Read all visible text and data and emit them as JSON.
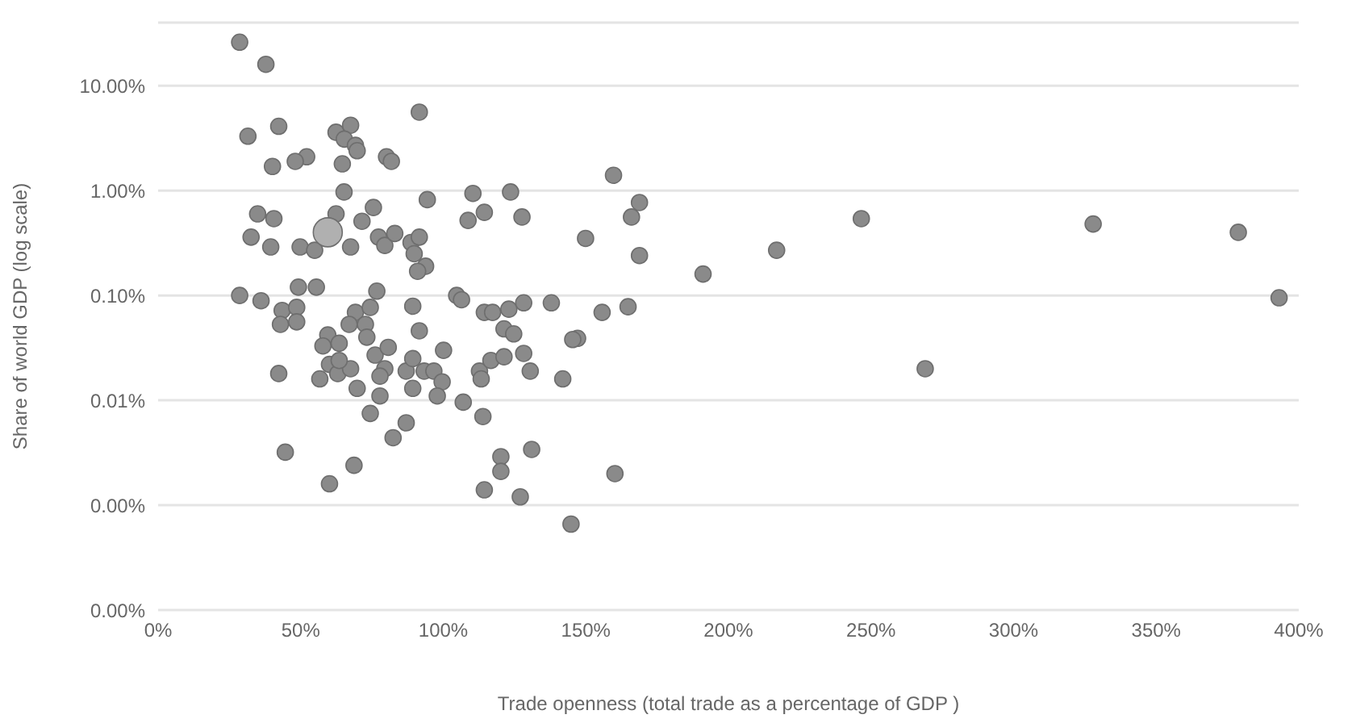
{
  "chart_data": {
    "type": "scatter",
    "xlabel": "Trade openness (total trade as a percentage of GDP )",
    "ylabel": "Share of world GDP (log scale)",
    "log": "y",
    "grid": "y",
    "legend": false,
    "marker": "circle",
    "xlim": [
      0,
      400
    ],
    "ylim": [
      0.0001,
      40
    ],
    "xticks": [
      {
        "value": 0,
        "label": "0%"
      },
      {
        "value": 50,
        "label": "50%"
      },
      {
        "value": 100,
        "label": "100%"
      },
      {
        "value": 150,
        "label": "150%"
      },
      {
        "value": 200,
        "label": "200%"
      },
      {
        "value": 250,
        "label": "250%"
      },
      {
        "value": 300,
        "label": "300%"
      },
      {
        "value": 350,
        "label": "350%"
      },
      {
        "value": 400,
        "label": "400%"
      }
    ],
    "yticks": [
      {
        "value": 0.0001,
        "label": "0.00%"
      },
      {
        "value": 0.001,
        "label": "0.00%"
      },
      {
        "value": 0.01,
        "label": "0.01%"
      },
      {
        "value": 0.1,
        "label": "0.10%"
      },
      {
        "value": 1,
        "label": "1.00%"
      },
      {
        "value": 10,
        "label": "10.00%"
      }
    ],
    "series": [
      {
        "color": "#8a8a8a",
        "x": [
          28.6,
          37.8,
          31.5,
          42.3,
          52.1,
          40.1,
          48.1,
          62.4,
          67.5,
          65.3,
          69.2,
          69.8,
          64.6,
          91.6,
          80.1,
          81.8,
          65.2,
          34.9,
          40.6,
          32.6,
          39.5,
          49.8,
          54.9,
          62.4,
          67.5,
          71.5,
          75.5,
          77.3,
          79.5,
          83.0,
          88.7,
          91.6,
          89.8,
          93.8,
          91.0,
          94.4,
          110.4,
          123.6,
          108.7,
          114.4,
          127.6,
          28.6,
          36.1,
          49.2,
          55.5,
          76.7,
          43.5,
          48.6,
          42.9,
          48.6,
          69.2,
          74.4,
          67.0,
          72.7,
          73.2,
          59.5,
          63.5,
          57.8,
          89.3,
          91.6,
          104.7,
          106.4,
          114.4,
          117.3,
          123.0,
          128.2,
          121.3,
          124.7,
          128.2,
          130.5,
          42.3,
          56.7,
          60.1,
          63.0,
          67.5,
          63.5,
          69.8,
          76.1,
          80.7,
          79.5,
          77.8,
          77.8,
          74.4,
          87.0,
          89.3,
          89.3,
          93.3,
          96.7,
          99.6,
          100.1,
          97.9,
          107.0,
          113.9,
          112.7,
          113.3,
          116.7,
          121.3,
          87.0,
          82.4,
          44.6,
          68.7,
          60.1,
          120.2,
          120.2,
          131.0,
          114.4,
          127.0,
          159.7,
          168.8,
          166.0,
          246.6,
          149.9,
          168.8,
          216.9,
          191.1,
          137.9,
          155.7,
          164.8,
          147.1,
          145.4,
          141.9,
          160.2,
          144.8,
          327.9,
          378.8,
          269.0,
          393.1
        ],
        "values": [
          26,
          16,
          3.3,
          4.1,
          2.1,
          1.7,
          1.9,
          3.6,
          4.2,
          3.1,
          2.7,
          2.4,
          1.8,
          5.6,
          2.1,
          1.9,
          0.97,
          0.6,
          0.54,
          0.36,
          0.29,
          0.29,
          0.27,
          0.6,
          0.29,
          0.51,
          0.69,
          0.36,
          0.3,
          0.39,
          0.32,
          0.36,
          0.25,
          0.19,
          0.17,
          0.82,
          0.94,
          0.97,
          0.52,
          0.62,
          0.56,
          0.1,
          0.089,
          0.12,
          0.12,
          0.11,
          0.072,
          0.077,
          0.053,
          0.056,
          0.069,
          0.077,
          0.053,
          0.053,
          0.04,
          0.042,
          0.035,
          0.033,
          0.079,
          0.046,
          0.1,
          0.091,
          0.069,
          0.069,
          0.074,
          0.085,
          0.048,
          0.043,
          0.028,
          0.019,
          0.018,
          0.016,
          0.022,
          0.018,
          0.02,
          0.024,
          0.013,
          0.027,
          0.032,
          0.02,
          0.017,
          0.011,
          0.0075,
          0.019,
          0.025,
          0.013,
          0.019,
          0.019,
          0.015,
          0.03,
          0.011,
          0.0096,
          0.007,
          0.019,
          0.016,
          0.024,
          0.026,
          0.0061,
          0.0044,
          0.0032,
          0.0024,
          0.0016,
          0.0029,
          0.0021,
          0.0034,
          0.0014,
          0.0012,
          1.4,
          0.77,
          0.56,
          0.54,
          0.35,
          0.24,
          0.27,
          0.16,
          0.085,
          0.069,
          0.078,
          0.039,
          0.038,
          0.016,
          0.002,
          0.00066,
          0.48,
          0.4,
          0.02,
          0.095
        ]
      },
      {
        "color": "#b0b0b0",
        "x": [
          59.5
        ],
        "values": [
          0.4
        ]
      }
    ]
  }
}
